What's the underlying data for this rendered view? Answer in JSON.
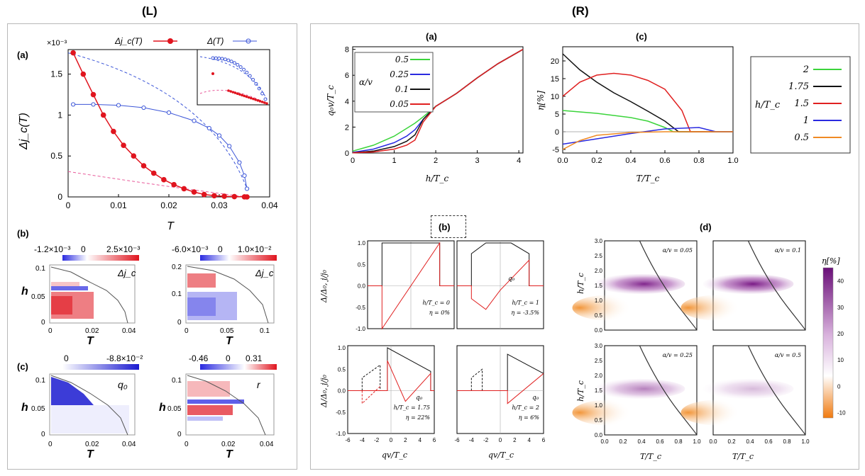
{
  "titles": {
    "left": "(L)",
    "right": "(R)"
  },
  "left": {
    "a": {
      "label": "(a)",
      "scale": "×10⁻³",
      "legend": [
        "Δj_c(T)",
        "Δ(T)"
      ],
      "ylabel": "Δj_c(T)",
      "xlabel": "T",
      "xticks": [
        "0",
        "0.01",
        "0.02",
        "0.03",
        "0.04"
      ],
      "yticks": [
        "0",
        "0.5",
        "1",
        "1.5"
      ],
      "colors": {
        "red": "#e0141e",
        "blue": "#3c56d8",
        "pink": "#e85a9a"
      }
    },
    "b": {
      "label": "(b)",
      "cb1": [
        "-1.2×10⁻³",
        "0",
        "2.5×10⁻³"
      ],
      "cb2": [
        "-6.0×10⁻³",
        "0",
        "1.0×10⁻²"
      ],
      "tag1": "Δj_c",
      "tag2": "Δj_c",
      "ylabel": "h",
      "xlabel": "T",
      "xticks1": [
        "0",
        "0.02",
        "0.04"
      ],
      "yticks1": [
        "0.1",
        "0.05",
        "0"
      ],
      "xticks2": [
        "0",
        "0.05",
        "0.1"
      ],
      "yticks2": [
        "0.2",
        "0.1",
        "0"
      ]
    },
    "c": {
      "label": "(c)",
      "cb1": [
        "0",
        "-8.8×10⁻²"
      ],
      "cb2": [
        "-0.46",
        "0",
        "0.31"
      ],
      "tag1": "q₀",
      "tag2": "r",
      "ylabel": "h",
      "xlabel": "T",
      "xticks": [
        "0",
        "0.02",
        "0.04"
      ],
      "yticks": [
        "0.1",
        "0.05",
        "0"
      ]
    }
  },
  "right": {
    "a": {
      "label": "(a)",
      "ylabel": "q₀v/T_c",
      "xlabel": "h/T_c",
      "xticks": [
        "0",
        "1",
        "2",
        "3",
        "4"
      ],
      "yticks": [
        "0",
        "2",
        "4",
        "6",
        "8"
      ],
      "legend_head": "α/v",
      "legend": [
        {
          "name": "0.5",
          "color": "#3bd43b"
        },
        {
          "name": "0.25",
          "color": "#2a2ae0"
        },
        {
          "name": "0.1",
          "color": "#111111"
        },
        {
          "name": "0.05",
          "color": "#e02020"
        }
      ]
    },
    "c": {
      "label": "(c)",
      "ylabel": "η[%]",
      "xlabel": "T/T_c",
      "xticks": [
        "0.0",
        "0.2",
        "0.4",
        "0.6",
        "0.8",
        "1.0"
      ],
      "yticks": [
        "-5",
        "0",
        "5",
        "10",
        "15",
        "20"
      ],
      "legend_head": "h/T_c",
      "legend": [
        {
          "name": "2",
          "color": "#3bd43b"
        },
        {
          "name": "1.75",
          "color": "#111111"
        },
        {
          "name": "1.5",
          "color": "#e02020"
        },
        {
          "name": "1",
          "color": "#2a2ae0"
        },
        {
          "name": "0.5",
          "color": "#f08a24"
        }
      ]
    },
    "b": {
      "label": "(b)",
      "ylabel": "Δ/Δ₀, j/j₀",
      "xlabel": "qv/T_c",
      "xticks": [
        "-6",
        "-4",
        "-2",
        "0",
        "2",
        "4",
        "6"
      ],
      "yticks": [
        "-1.0",
        "-0.5",
        "0.0",
        "0.5",
        "1.0"
      ],
      "annotations": [
        {
          "h": "h/T_c = 0",
          "eta": "η = 0%"
        },
        {
          "h": "h/T_c = 1",
          "eta": "η = -3.5%"
        },
        {
          "h": "h/T_c = 1.75",
          "eta": "η = 22%"
        },
        {
          "h": "h/T_c = 2",
          "eta": "η = 6%"
        }
      ],
      "q0": "q₀"
    },
    "d": {
      "label": "(d)",
      "ylabel": "h/T_c",
      "xlabel": "T/T_c",
      "xticks": [
        "0.0",
        "0.2",
        "0.4",
        "0.6",
        "0.8",
        "1.0"
      ],
      "yticks": [
        "0.0",
        "0.5",
        "1.0",
        "1.5",
        "2.0",
        "2.5",
        "3.0"
      ],
      "tags": [
        "α/v = 0.05",
        "α/v = 0.1",
        "α/v = 0.25",
        "α/v = 0.5"
      ],
      "cb_title": "η[%]",
      "cb_ticks": [
        "40",
        "30",
        "20",
        "10",
        "0",
        "-10"
      ]
    }
  },
  "chart_data": [
    {
      "type": "line",
      "title": "(L)(a) Δj_c(T) and Δ(T)",
      "xlabel": "T",
      "ylabel": "Δj_c(T) ×10⁻³",
      "xlim": [
        0,
        0.04
      ],
      "ylim": [
        0,
        1.8
      ],
      "series": [
        {
          "name": "Δj_c(T)",
          "x": [
            0.001,
            0.003,
            0.005,
            0.007,
            0.009,
            0.011,
            0.013,
            0.015,
            0.017,
            0.019,
            0.021,
            0.023,
            0.025,
            0.027,
            0.029,
            0.031,
            0.033,
            0.035,
            0.0355
          ],
          "y": [
            1.76,
            1.5,
            1.25,
            1.0,
            0.8,
            0.63,
            0.5,
            0.38,
            0.29,
            0.21,
            0.15,
            0.1,
            0.06,
            0.03,
            0.015,
            0.008,
            0.004,
            0.001,
            0.0
          ]
        },
        {
          "name": "Δ(T)",
          "x": [
            0.001,
            0.005,
            0.01,
            0.015,
            0.02,
            0.025,
            0.028,
            0.03,
            0.032,
            0.034,
            0.035,
            0.0355
          ],
          "y": [
            1.13,
            1.13,
            1.12,
            1.09,
            1.03,
            0.93,
            0.84,
            0.75,
            0.62,
            0.42,
            0.26,
            0.1
          ]
        }
      ]
    },
    {
      "type": "line",
      "title": "(R)(a) q₀v/T_c vs h/T_c",
      "xlabel": "h/T_c",
      "ylabel": "q₀v/T_c",
      "xlim": [
        0,
        4.1
      ],
      "ylim": [
        0,
        8.2
      ],
      "x": [
        0,
        0.5,
        1,
        1.3,
        1.5,
        1.7,
        2,
        2.5,
        3,
        3.5,
        4.1
      ],
      "series": [
        {
          "name": "0.5",
          "values": [
            0.15,
            0.6,
            1.3,
            1.9,
            2.3,
            2.8,
            3.6,
            4.6,
            5.8,
            6.9,
            8.0
          ]
        },
        {
          "name": "0.25",
          "values": [
            0.05,
            0.3,
            0.8,
            1.3,
            1.8,
            2.6,
            3.6,
            4.6,
            5.8,
            6.9,
            8.0
          ]
        },
        {
          "name": "0.1",
          "values": [
            0.02,
            0.15,
            0.5,
            0.9,
            1.4,
            2.6,
            3.6,
            4.6,
            5.8,
            6.9,
            8.0
          ]
        },
        {
          "name": "0.05",
          "values": [
            0.01,
            0.08,
            0.3,
            0.6,
            1.0,
            2.4,
            3.6,
            4.6,
            5.8,
            6.9,
            8.0
          ]
        }
      ]
    },
    {
      "type": "line",
      "title": "(R)(c) η[%] vs T/T_c",
      "xlabel": "T/T_c",
      "ylabel": "η[%]",
      "xlim": [
        0,
        1.0
      ],
      "ylim": [
        -6,
        24
      ],
      "series": [
        {
          "name": "2",
          "x": [
            0,
            0.2,
            0.4,
            0.5,
            0.6,
            0.65,
            1.0
          ],
          "y": [
            6,
            5.2,
            4,
            3,
            1.2,
            0,
            0
          ]
        },
        {
          "name": "1.75",
          "x": [
            0,
            0.1,
            0.2,
            0.3,
            0.4,
            0.5,
            0.6,
            0.68,
            1.0
          ],
          "y": [
            22,
            17.5,
            14,
            11,
            8.5,
            5.8,
            3,
            0,
            0
          ]
        },
        {
          "name": "1.5",
          "x": [
            0,
            0.1,
            0.2,
            0.3,
            0.4,
            0.5,
            0.6,
            0.7,
            0.75,
            1.0
          ],
          "y": [
            10,
            14,
            16,
            16.5,
            16,
            14.5,
            12,
            6,
            0,
            0
          ]
        },
        {
          "name": "1",
          "x": [
            0,
            0.2,
            0.4,
            0.6,
            0.8,
            0.9,
            1.0
          ],
          "y": [
            -3.5,
            -2,
            -0.5,
            0.8,
            1.2,
            0,
            0
          ]
        },
        {
          "name": "0.5",
          "x": [
            0,
            0.1,
            0.2,
            0.4,
            0.6,
            0.8,
            1.0
          ],
          "y": [
            -5,
            -2.5,
            -1,
            -0.2,
            0,
            0,
            0
          ]
        }
      ]
    }
  ]
}
